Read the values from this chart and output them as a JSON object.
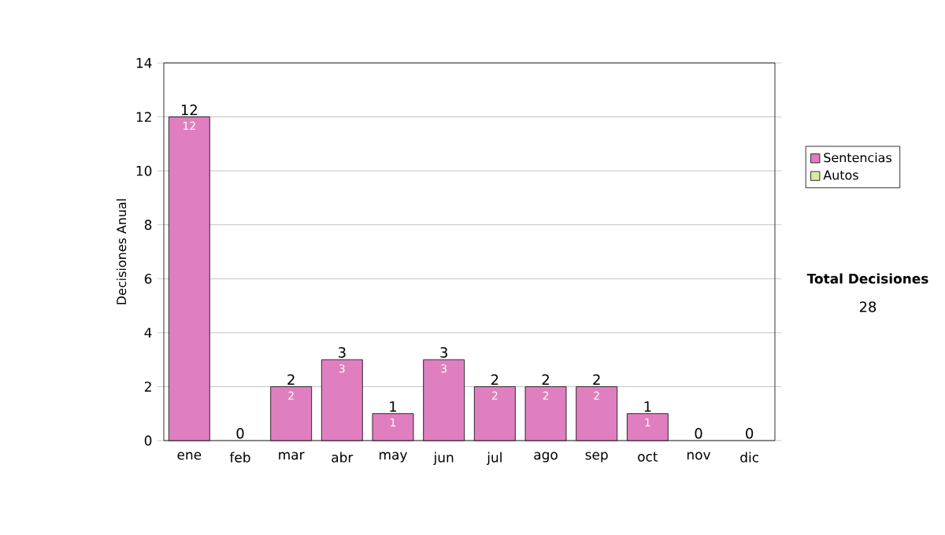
{
  "chart_data": {
    "type": "bar",
    "stacked": true,
    "ylabel": "Decisiones Anual",
    "categories": [
      "ene",
      "feb",
      "mar",
      "abr",
      "may",
      "jun",
      "jul",
      "ago",
      "sep",
      "oct",
      "nov",
      "dic"
    ],
    "series": [
      {
        "name": "Sentencias",
        "color": "#e07fc0",
        "values": [
          12,
          0,
          2,
          3,
          1,
          3,
          2,
          2,
          2,
          1,
          0,
          0
        ],
        "value_labels": [
          "12",
          null,
          "2",
          "3",
          "1",
          "3",
          "2",
          "2",
          "2",
          "1",
          null,
          null
        ]
      },
      {
        "name": "Autos",
        "color": "#d8ec9c",
        "values": [
          0,
          0,
          0,
          0,
          0,
          0,
          0,
          0,
          0,
          0,
          0,
          0
        ]
      }
    ],
    "totals": [
      "12",
      "0",
      "2",
      "3",
      "1",
      "3",
      "2",
      "2",
      "2",
      "1",
      "0",
      "0"
    ],
    "ylim": [
      0,
      14
    ],
    "yticks": [
      0,
      2,
      4,
      6,
      8,
      10,
      12,
      14
    ],
    "grid": "y",
    "legend": "right",
    "annotations": [
      "Total Decisiones",
      "28"
    ]
  }
}
